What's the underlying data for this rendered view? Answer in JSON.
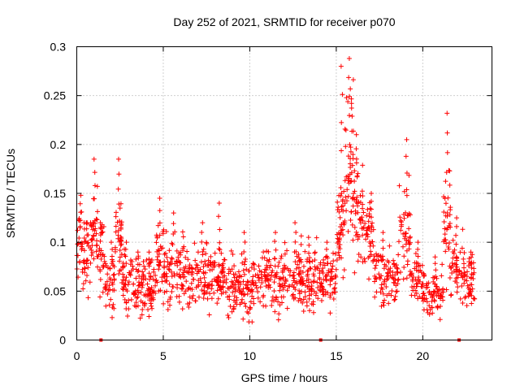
{
  "chart_data": {
    "type": "scatter",
    "title": "Day 252 of 2021, SRMTID for receiver p070",
    "xlabel": "GPS time / hours",
    "ylabel": "SRMTID / TECUs",
    "xlim": [
      0,
      24
    ],
    "ylim": [
      0,
      0.3
    ],
    "x_ticks": [
      0,
      5,
      10,
      15,
      20
    ],
    "x_tick_labels": [
      "0",
      "5",
      "10",
      "15",
      "20"
    ],
    "y_ticks": [
      0,
      0.05,
      0.1,
      0.15,
      0.2,
      0.25,
      0.3
    ],
    "y_tick_labels": [
      "0",
      "0.05",
      "0.1",
      "0.15",
      "0.2",
      "0.25",
      "0.3"
    ],
    "grid": true,
    "marker": "plus",
    "color": "#ff0000",
    "zero_markers_x": [
      1.4,
      14.1,
      22.1
    ],
    "segments": [
      {
        "x0": 0.0,
        "x1": 0.3,
        "mean": 0.1,
        "spread": 0.03,
        "peak": 0.148,
        "n": 20
      },
      {
        "x0": 0.3,
        "x1": 0.8,
        "mean": 0.085,
        "spread": 0.03,
        "peak": 0.12,
        "n": 35
      },
      {
        "x0": 0.8,
        "x1": 1.2,
        "mean": 0.11,
        "spread": 0.035,
        "peak": 0.185,
        "n": 35
      },
      {
        "x0": 1.2,
        "x1": 1.6,
        "mean": 0.085,
        "spread": 0.03,
        "peak": 0.12,
        "n": 25
      },
      {
        "x0": 1.6,
        "x1": 2.2,
        "mean": 0.06,
        "spread": 0.025,
        "peak": 0.1,
        "n": 40
      },
      {
        "x0": 2.2,
        "x1": 2.6,
        "mean": 0.1,
        "spread": 0.035,
        "peak": 0.185,
        "n": 35
      },
      {
        "x0": 2.6,
        "x1": 3.2,
        "mean": 0.06,
        "spread": 0.03,
        "peak": 0.1,
        "n": 40
      },
      {
        "x0": 3.2,
        "x1": 4.0,
        "mean": 0.055,
        "spread": 0.025,
        "peak": 0.09,
        "n": 55
      },
      {
        "x0": 4.0,
        "x1": 4.6,
        "mean": 0.05,
        "spread": 0.025,
        "peak": 0.09,
        "n": 45
      },
      {
        "x0": 4.6,
        "x1": 5.1,
        "mean": 0.075,
        "spread": 0.03,
        "peak": 0.145,
        "n": 40
      },
      {
        "x0": 5.1,
        "x1": 6.2,
        "mean": 0.07,
        "spread": 0.03,
        "peak": 0.13,
        "n": 75
      },
      {
        "x0": 6.2,
        "x1": 8.0,
        "mean": 0.065,
        "spread": 0.025,
        "peak": 0.12,
        "n": 110
      },
      {
        "x0": 8.0,
        "x1": 8.6,
        "mean": 0.065,
        "spread": 0.025,
        "peak": 0.14,
        "n": 45
      },
      {
        "x0": 8.6,
        "x1": 10.5,
        "mean": 0.055,
        "spread": 0.025,
        "peak": 0.11,
        "n": 120
      },
      {
        "x0": 10.5,
        "x1": 12.0,
        "mean": 0.06,
        "spread": 0.025,
        "peak": 0.11,
        "n": 95
      },
      {
        "x0": 12.0,
        "x1": 13.0,
        "mean": 0.065,
        "spread": 0.025,
        "peak": 0.12,
        "n": 65
      },
      {
        "x0": 13.0,
        "x1": 14.0,
        "mean": 0.06,
        "spread": 0.025,
        "peak": 0.105,
        "n": 65
      },
      {
        "x0": 14.0,
        "x1": 15.0,
        "mean": 0.06,
        "spread": 0.025,
        "peak": 0.1,
        "n": 70
      },
      {
        "x0": 15.0,
        "x1": 15.5,
        "mean": 0.12,
        "spread": 0.04,
        "peak": 0.28,
        "n": 45
      },
      {
        "x0": 15.5,
        "x1": 16.0,
        "mean": 0.18,
        "spread": 0.06,
        "peak": 0.288,
        "n": 50
      },
      {
        "x0": 16.0,
        "x1": 16.6,
        "mean": 0.13,
        "spread": 0.04,
        "peak": 0.21,
        "n": 45
      },
      {
        "x0": 16.6,
        "x1": 17.2,
        "mean": 0.105,
        "spread": 0.03,
        "peak": 0.15,
        "n": 40
      },
      {
        "x0": 17.2,
        "x1": 18.6,
        "mean": 0.065,
        "spread": 0.02,
        "peak": 0.11,
        "n": 85
      },
      {
        "x0": 18.6,
        "x1": 19.3,
        "mean": 0.11,
        "spread": 0.035,
        "peak": 0.205,
        "n": 45
      },
      {
        "x0": 19.3,
        "x1": 20.2,
        "mean": 0.06,
        "spread": 0.02,
        "peak": 0.1,
        "n": 55
      },
      {
        "x0": 20.2,
        "x1": 21.2,
        "mean": 0.048,
        "spread": 0.02,
        "peak": 0.085,
        "n": 60
      },
      {
        "x0": 21.2,
        "x1": 21.6,
        "mean": 0.12,
        "spread": 0.05,
        "peak": 0.232,
        "n": 35
      },
      {
        "x0": 21.6,
        "x1": 22.4,
        "mean": 0.075,
        "spread": 0.025,
        "peak": 0.125,
        "n": 50
      },
      {
        "x0": 22.4,
        "x1": 23.0,
        "mean": 0.06,
        "spread": 0.02,
        "peak": 0.09,
        "n": 40
      }
    ]
  }
}
